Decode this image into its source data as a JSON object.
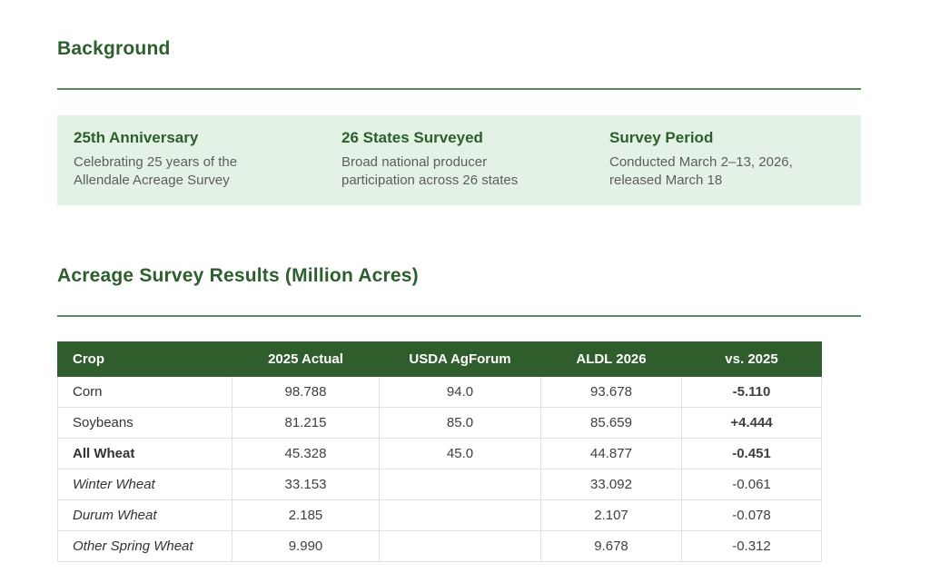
{
  "colors": {
    "heading_green": "#2c5f2d",
    "table_header_green": "#2f5d2b",
    "panel_light_green": "#e3f2e5",
    "stripe_row": "#eef4ee",
    "rule_green": "#5c8a5f",
    "negative_red": "#b3322e",
    "positive_green": "#2e7d32"
  },
  "background_section": {
    "heading": "Background"
  },
  "info_cards": [
    {
      "title": "25th Anniversary",
      "body": "Celebrating 25 years of the Allendale Acreage Survey"
    },
    {
      "title": "26 States Surveyed",
      "body": "Broad national producer participation across 26 states"
    },
    {
      "title": "Survey Period",
      "body": "Conducted March 2–13, 2026, released March 18"
    }
  ],
  "results_section": {
    "heading": "Acreage Survey Results (Million Acres)"
  },
  "chart_data": {
    "type": "table",
    "title": "Acreage Survey Results (Million Acres)",
    "columns": [
      "Crop",
      "2025 Actual",
      "USDA AgForum",
      "ALDL 2026",
      "vs. 2025"
    ],
    "rows": [
      {
        "crop": "Corn",
        "actual_2025": "98.788",
        "usda_agforum": "94.0",
        "aldl_2026": "93.678",
        "vs_2025": "-5.110"
      },
      {
        "crop": "Soybeans",
        "actual_2025": "81.215",
        "usda_agforum": "85.0",
        "aldl_2026": "85.659",
        "vs_2025": "+4.444"
      },
      {
        "crop": "All Wheat",
        "actual_2025": "45.328",
        "usda_agforum": "45.0",
        "aldl_2026": "44.877",
        "vs_2025": "-0.451"
      },
      {
        "crop": "Winter Wheat",
        "actual_2025": "33.153",
        "usda_agforum": "",
        "aldl_2026": "33.092",
        "vs_2025": "-0.061"
      },
      {
        "crop": "Durum Wheat",
        "actual_2025": "2.185",
        "usda_agforum": "",
        "aldl_2026": "2.107",
        "vs_2025": "-0.078"
      },
      {
        "crop": "Other Spring Wheat",
        "actual_2025": "9.990",
        "usda_agforum": "",
        "aldl_2026": "9.678",
        "vs_2025": "-0.312"
      }
    ]
  }
}
